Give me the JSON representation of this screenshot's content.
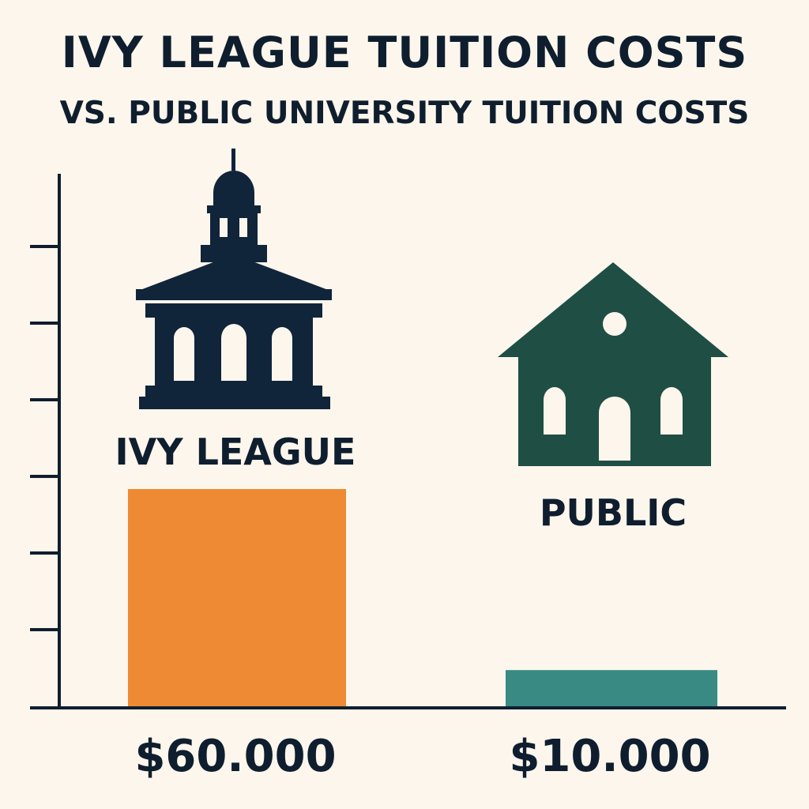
{
  "chart_data": {
    "type": "bar",
    "title": "IVY LEAGUE TUITION COSTS",
    "subtitle": "VS. PUBLIC UNIVERSITY TUITION COSTS",
    "categories": [
      "IVY LEAGUE",
      "PUBLIC"
    ],
    "values": [
      60000,
      10000
    ],
    "value_labels": [
      "$60.000",
      "$10.000"
    ],
    "bar_colors": [
      "#ee8a33",
      "#3a8a84"
    ],
    "icons": [
      "ivy-league-building-icon",
      "public-school-house-icon"
    ],
    "icon_colors": [
      "#10243a",
      "#1f4e44"
    ],
    "xlabel": "",
    "ylabel": "",
    "grid": false,
    "legend": "none",
    "y_tick_count": 6
  },
  "colors": {
    "background": "#fcf6ec",
    "text": "#0f1e2e",
    "axis": "#0f1e2e"
  }
}
